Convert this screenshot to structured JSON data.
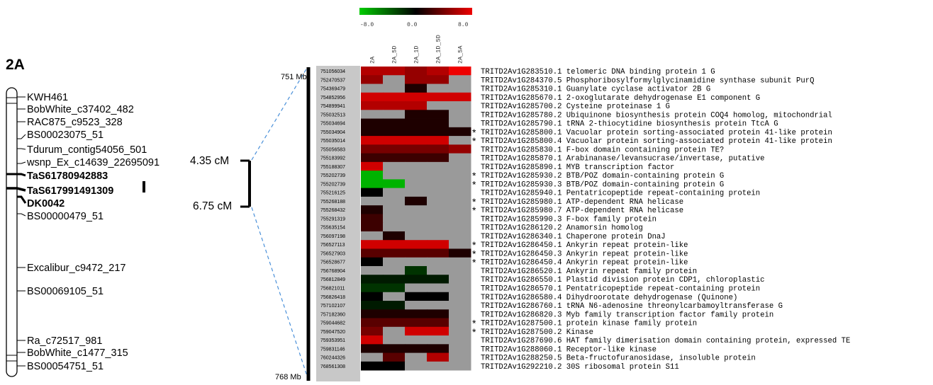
{
  "chromosome": "2A",
  "color_scale": {
    "labels": [
      "-8.0",
      "0.0",
      "8.0"
    ],
    "colors": {
      "low": "#00cc00",
      "mid": "#000000",
      "high": "#ee0000",
      "missing": "#9a9a9a"
    }
  },
  "map_markers": [
    {
      "name": "KWH461",
      "bold": false
    },
    {
      "name": "BobWhite_c37402_482",
      "bold": false
    },
    {
      "name": "RAC875_c9523_328",
      "bold": false
    },
    {
      "name": "BS00023075_51",
      "bold": false
    },
    {
      "name": "Tdurum_contig54056_501",
      "bold": false
    },
    {
      "name": "wsnp_Ex_c14639_22695091",
      "bold": false
    },
    {
      "name": "TaS61780942883",
      "bold": true
    },
    {
      "name": "TaS617991491309",
      "bold": true
    },
    {
      "name": "DK0042",
      "bold": true
    },
    {
      "name": "BS00000479_51",
      "bold": false
    },
    {
      "name": "Excalibur_c9472_217",
      "bold": false
    },
    {
      "name": "BS00069105_51",
      "bold": false
    },
    {
      "name": "Ra_c72517_981",
      "bold": false
    },
    {
      "name": "BobWhite_c1477_315",
      "bold": false
    },
    {
      "name": "BS00054751_51",
      "bold": false
    }
  ],
  "qtl_interval": {
    "start_label": "4.35 cM",
    "end_label": "6.75 cM"
  },
  "physical_interval": {
    "start_label": "751 Mb",
    "end_label": "768 Mb"
  },
  "columns": [
    "2A",
    "2A_5D",
    "2A_1D",
    "2A_1D_5D",
    "2A_5A"
  ],
  "genes": [
    {
      "pos": "751056034",
      "star": false,
      "id": "TRITD2Av1G283510.1",
      "desc": "telomeric DNA binding protein 1 G",
      "values": [
        6,
        6,
        5,
        6,
        8
      ]
    },
    {
      "pos": "752470537",
      "star": false,
      "id": "TRITD2Av1G284370.5",
      "desc": "Phosphoribosylformylglycinamidine synthase subunit PurQ",
      "values": [
        5,
        null,
        5,
        5,
        null
      ]
    },
    {
      "pos": "754369479",
      "star": false,
      "id": "TRITD2Av1G285310.1",
      "desc": "Guanylate cyclase activator 2B G",
      "values": [
        null,
        null,
        1,
        null,
        null
      ]
    },
    {
      "pos": "754852956",
      "star": false,
      "id": "TRITD2Av1G285670.1",
      "desc": "2-oxoglutarate dehydrogenase E1 component G",
      "values": [
        7,
        7,
        7,
        7,
        7
      ]
    },
    {
      "pos": "754899941",
      "star": false,
      "id": "TRITD2Av1G285700.2",
      "desc": "Cysteine proteinase 1 G",
      "values": [
        6,
        6,
        6,
        null,
        null
      ]
    },
    {
      "pos": "755032513",
      "star": false,
      "id": "TRITD2Av1G285780.2",
      "desc": "Ubiquinone biosynthesis protein COQ4 homolog, mitochondrial",
      "values": [
        null,
        null,
        1,
        1,
        null
      ]
    },
    {
      "pos": "755034694",
      "star": false,
      "id": "TRITD2Av1G285790.1",
      "desc": "tRNA 2-thiocytidine biosynthesis protein TtcA G",
      "values": [
        1,
        1,
        1,
        1,
        null
      ]
    },
    {
      "pos": "755034904",
      "star": true,
      "id": "TRITD2Av1G285800.1",
      "desc": "Vacuolar protein sorting-associated protein 41-like protein",
      "values": [
        1,
        1,
        1,
        1,
        1
      ]
    },
    {
      "pos": "755035014",
      "star": true,
      "id": "TRITD2Av1G285800.4",
      "desc": "Vacuolar protein sorting-associated protein 41-like protein",
      "values": [
        7,
        7,
        7,
        7,
        null
      ]
    },
    {
      "pos": "755056583",
      "star": false,
      "id": "TRITD2Av1G285830.1",
      "desc": "F-box domain containing protein TE?",
      "values": [
        4,
        4,
        4,
        4,
        5
      ]
    },
    {
      "pos": "755183992",
      "star": false,
      "id": "TRITD2Av1G285870.1",
      "desc": "Arabinanase/levansucrase/invertase, putative",
      "values": [
        2,
        2,
        2,
        2,
        null
      ]
    },
    {
      "pos": "755188307",
      "star": false,
      "id": "TRITD2Av1G285890.1",
      "desc": "MYB transcription factor",
      "values": [
        7,
        null,
        null,
        null,
        null
      ]
    },
    {
      "pos": "755202739",
      "star": true,
      "id": "TRITD2Av1G285930.2",
      "desc": "BTB/POZ domain-containing protein G",
      "values": [
        -7,
        null,
        null,
        null,
        null
      ]
    },
    {
      "pos": "755202739",
      "star": true,
      "id": "TRITD2Av1G285930.3",
      "desc": "BTB/POZ domain-containing protein G",
      "values": [
        -7,
        -7,
        null,
        null,
        null
      ]
    },
    {
      "pos": "755216125",
      "star": false,
      "id": "TRITD2Av1G285940.1",
      "desc": "Pentatricopeptide repeat-containing protein",
      "values": [
        0,
        null,
        null,
        null,
        null
      ]
    },
    {
      "pos": "755268188",
      "star": true,
      "id": "TRITD2Av1G285980.1",
      "desc": "ATP-dependent RNA helicase",
      "values": [
        null,
        null,
        1,
        null,
        null
      ]
    },
    {
      "pos": "755268432",
      "star": true,
      "id": "TRITD2Av1G285980.7",
      "desc": "ATP-dependent RNA helicase",
      "values": [
        1,
        null,
        null,
        null,
        null
      ]
    },
    {
      "pos": "755291319",
      "star": false,
      "id": "TRITD2Av1G285990.3",
      "desc": "F-box family protein",
      "values": [
        2,
        null,
        null,
        null,
        null
      ]
    },
    {
      "pos": "755635154",
      "star": false,
      "id": "TRITD2Av1G286120.2",
      "desc": "Anamorsin homolog",
      "values": [
        2,
        null,
        null,
        null,
        null
      ]
    },
    {
      "pos": "756097198",
      "star": false,
      "id": "TRITD2Av1G286340.1",
      "desc": "Chaperone protein DnaJ",
      "values": [
        null,
        1,
        null,
        null,
        null
      ]
    },
    {
      "pos": "756527113",
      "star": true,
      "id": "TRITD2Av1G286450.1",
      "desc": "Ankyrin repeat protein-like",
      "values": [
        7,
        7,
        7,
        7,
        null
      ]
    },
    {
      "pos": "756527903",
      "star": true,
      "id": "TRITD2Av1G286450.3",
      "desc": "Ankyrin repeat protein-like",
      "values": [
        3,
        3,
        3,
        3,
        1
      ]
    },
    {
      "pos": "756528677",
      "star": true,
      "id": "TRITD2Av1G286450.4",
      "desc": "Ankyrin repeat protein-like",
      "values": [
        0,
        null,
        null,
        null,
        null
      ]
    },
    {
      "pos": "756768904",
      "star": false,
      "id": "TRITD2Av1G286520.1",
      "desc": "Ankyrin repeat family protein",
      "values": [
        null,
        null,
        -2,
        null,
        null
      ]
    },
    {
      "pos": "756812849",
      "star": false,
      "id": "TRITD2Av1G286550.1",
      "desc": "Plastid division protein CDP1, chloroplastic",
      "values": [
        -1,
        -1,
        -1,
        -1,
        null
      ]
    },
    {
      "pos": "756821011",
      "star": false,
      "id": "TRITD2Av1G286570.1",
      "desc": "Pentatricopeptide repeat-containing protein",
      "values": [
        -2,
        -2,
        null,
        null,
        null
      ]
    },
    {
      "pos": "756826418",
      "star": false,
      "id": "TRITD2Av1G286580.4",
      "desc": "Dihydroorotate dehydrogenase (Quinone)",
      "values": [
        0,
        null,
        0,
        0,
        null
      ]
    },
    {
      "pos": "757102107",
      "star": false,
      "id": "TRITD2Av1G286760.1",
      "desc": "tRNA N6-adenosine threonylcarbamoyltransferase G",
      "values": [
        -1,
        -1,
        null,
        null,
        null
      ]
    },
    {
      "pos": "757182360",
      "star": false,
      "id": "TRITD2Av1G286820.3",
      "desc": "Myb family transcription factor family protein",
      "values": [
        1,
        1,
        1,
        1,
        null
      ]
    },
    {
      "pos": "759044682",
      "star": true,
      "id": "TRITD2Av1G287500.1",
      "desc": "protein kinase family protein",
      "values": [
        3,
        3,
        3,
        3,
        null
      ]
    },
    {
      "pos": "759047520",
      "star": true,
      "id": "TRITD2Av1G287500.2",
      "desc": "Kinase",
      "values": [
        4,
        null,
        7,
        7,
        null
      ]
    },
    {
      "pos": "759353951",
      "star": false,
      "id": "TRITD2Av1G287690.6",
      "desc": "HAT family dimerisation domain containing protein, expressed TE",
      "values": [
        7,
        null,
        null,
        null,
        null
      ]
    },
    {
      "pos": "759831146",
      "star": false,
      "id": "TRITD2Av1G288060.1",
      "desc": "Receptor-like kinase",
      "values": [
        1,
        1,
        1,
        1,
        null
      ]
    },
    {
      "pos": "760244326",
      "star": false,
      "id": "TRITD2Av1G288250.5",
      "desc": "Beta-fructofuranosidase, insoluble protein",
      "values": [
        null,
        3,
        null,
        6,
        null
      ]
    },
    {
      "pos": "768561308",
      "star": false,
      "id": "TRITD2Av1G292210.2",
      "desc": "30S ribosomal protein S11",
      "values": [
        0,
        0,
        null,
        null,
        null
      ]
    }
  ]
}
